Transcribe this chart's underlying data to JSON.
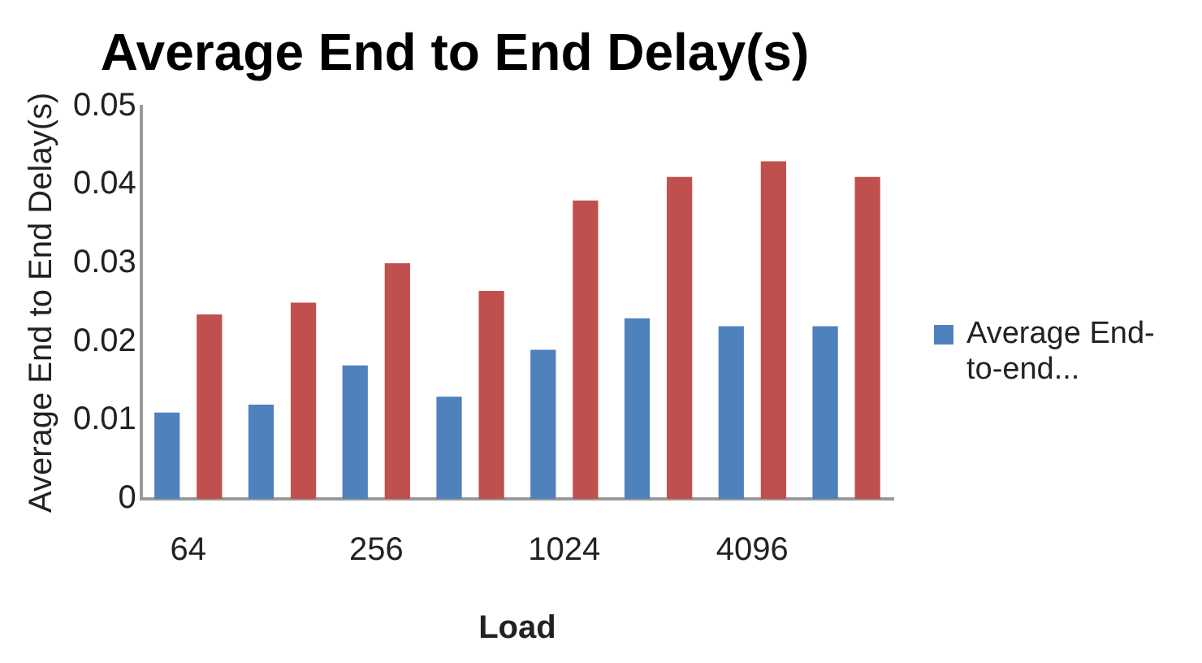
{
  "chart_data": {
    "type": "bar",
    "title": "Average End to End Delay(s)",
    "xlabel": "Load",
    "ylabel": "Average End to End Delay(s)",
    "categories": [
      "64",
      null,
      "256",
      null,
      "1024",
      null,
      "4096",
      null
    ],
    "series": [
      {
        "name": "Average End-to-end...",
        "color": "#4f81bd",
        "values": [
          0.011,
          0.012,
          0.017,
          0.013,
          0.019,
          0.023,
          0.022,
          0.022
        ]
      },
      {
        "color": "#c0504d",
        "values": [
          0.0235,
          0.025,
          0.03,
          0.0265,
          0.038,
          0.041,
          0.043,
          0.041
        ]
      }
    ],
    "ylim": [
      0,
      0.05
    ],
    "yticks": [
      0,
      0.01,
      0.02,
      0.03,
      0.04,
      0.05
    ],
    "grid": false,
    "legend": "right"
  }
}
